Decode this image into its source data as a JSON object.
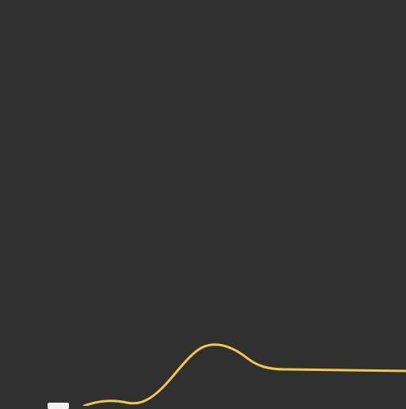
{
  "canvas": {
    "background_color": "#303030"
  },
  "curve": {
    "stroke_color": "#f2c94c",
    "icon": "curve-line"
  },
  "handle": {
    "color": "#f2f2f2",
    "icon": "curve-edit-handle"
  }
}
